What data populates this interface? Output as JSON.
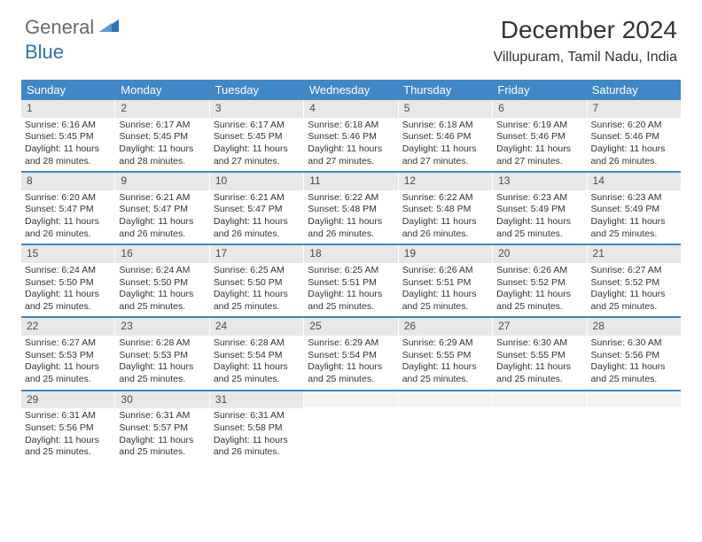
{
  "logo": {
    "text1": "General",
    "text2": "Blue"
  },
  "title": "December 2024",
  "location": "Villupuram, Tamil Nadu, India",
  "colors": {
    "header_bg": "#3f87c6",
    "daynum_bg": "#e8e8e8",
    "logo_gray": "#6a6a6a",
    "logo_blue": "#2d74b5"
  },
  "weekdays": [
    "Sunday",
    "Monday",
    "Tuesday",
    "Wednesday",
    "Thursday",
    "Friday",
    "Saturday"
  ],
  "weeks": [
    [
      {
        "n": "1",
        "sr": "Sunrise: 6:16 AM",
        "ss": "Sunset: 5:45 PM",
        "dl": "Daylight: 11 hours and 28 minutes."
      },
      {
        "n": "2",
        "sr": "Sunrise: 6:17 AM",
        "ss": "Sunset: 5:45 PM",
        "dl": "Daylight: 11 hours and 28 minutes."
      },
      {
        "n": "3",
        "sr": "Sunrise: 6:17 AM",
        "ss": "Sunset: 5:45 PM",
        "dl": "Daylight: 11 hours and 27 minutes."
      },
      {
        "n": "4",
        "sr": "Sunrise: 6:18 AM",
        "ss": "Sunset: 5:46 PM",
        "dl": "Daylight: 11 hours and 27 minutes."
      },
      {
        "n": "5",
        "sr": "Sunrise: 6:18 AM",
        "ss": "Sunset: 5:46 PM",
        "dl": "Daylight: 11 hours and 27 minutes."
      },
      {
        "n": "6",
        "sr": "Sunrise: 6:19 AM",
        "ss": "Sunset: 5:46 PM",
        "dl": "Daylight: 11 hours and 27 minutes."
      },
      {
        "n": "7",
        "sr": "Sunrise: 6:20 AM",
        "ss": "Sunset: 5:46 PM",
        "dl": "Daylight: 11 hours and 26 minutes."
      }
    ],
    [
      {
        "n": "8",
        "sr": "Sunrise: 6:20 AM",
        "ss": "Sunset: 5:47 PM",
        "dl": "Daylight: 11 hours and 26 minutes."
      },
      {
        "n": "9",
        "sr": "Sunrise: 6:21 AM",
        "ss": "Sunset: 5:47 PM",
        "dl": "Daylight: 11 hours and 26 minutes."
      },
      {
        "n": "10",
        "sr": "Sunrise: 6:21 AM",
        "ss": "Sunset: 5:47 PM",
        "dl": "Daylight: 11 hours and 26 minutes."
      },
      {
        "n": "11",
        "sr": "Sunrise: 6:22 AM",
        "ss": "Sunset: 5:48 PM",
        "dl": "Daylight: 11 hours and 26 minutes."
      },
      {
        "n": "12",
        "sr": "Sunrise: 6:22 AM",
        "ss": "Sunset: 5:48 PM",
        "dl": "Daylight: 11 hours and 26 minutes."
      },
      {
        "n": "13",
        "sr": "Sunrise: 6:23 AM",
        "ss": "Sunset: 5:49 PM",
        "dl": "Daylight: 11 hours and 25 minutes."
      },
      {
        "n": "14",
        "sr": "Sunrise: 6:23 AM",
        "ss": "Sunset: 5:49 PM",
        "dl": "Daylight: 11 hours and 25 minutes."
      }
    ],
    [
      {
        "n": "15",
        "sr": "Sunrise: 6:24 AM",
        "ss": "Sunset: 5:50 PM",
        "dl": "Daylight: 11 hours and 25 minutes."
      },
      {
        "n": "16",
        "sr": "Sunrise: 6:24 AM",
        "ss": "Sunset: 5:50 PM",
        "dl": "Daylight: 11 hours and 25 minutes."
      },
      {
        "n": "17",
        "sr": "Sunrise: 6:25 AM",
        "ss": "Sunset: 5:50 PM",
        "dl": "Daylight: 11 hours and 25 minutes."
      },
      {
        "n": "18",
        "sr": "Sunrise: 6:25 AM",
        "ss": "Sunset: 5:51 PM",
        "dl": "Daylight: 11 hours and 25 minutes."
      },
      {
        "n": "19",
        "sr": "Sunrise: 6:26 AM",
        "ss": "Sunset: 5:51 PM",
        "dl": "Daylight: 11 hours and 25 minutes."
      },
      {
        "n": "20",
        "sr": "Sunrise: 6:26 AM",
        "ss": "Sunset: 5:52 PM",
        "dl": "Daylight: 11 hours and 25 minutes."
      },
      {
        "n": "21",
        "sr": "Sunrise: 6:27 AM",
        "ss": "Sunset: 5:52 PM",
        "dl": "Daylight: 11 hours and 25 minutes."
      }
    ],
    [
      {
        "n": "22",
        "sr": "Sunrise: 6:27 AM",
        "ss": "Sunset: 5:53 PM",
        "dl": "Daylight: 11 hours and 25 minutes."
      },
      {
        "n": "23",
        "sr": "Sunrise: 6:28 AM",
        "ss": "Sunset: 5:53 PM",
        "dl": "Daylight: 11 hours and 25 minutes."
      },
      {
        "n": "24",
        "sr": "Sunrise: 6:28 AM",
        "ss": "Sunset: 5:54 PM",
        "dl": "Daylight: 11 hours and 25 minutes."
      },
      {
        "n": "25",
        "sr": "Sunrise: 6:29 AM",
        "ss": "Sunset: 5:54 PM",
        "dl": "Daylight: 11 hours and 25 minutes."
      },
      {
        "n": "26",
        "sr": "Sunrise: 6:29 AM",
        "ss": "Sunset: 5:55 PM",
        "dl": "Daylight: 11 hours and 25 minutes."
      },
      {
        "n": "27",
        "sr": "Sunrise: 6:30 AM",
        "ss": "Sunset: 5:55 PM",
        "dl": "Daylight: 11 hours and 25 minutes."
      },
      {
        "n": "28",
        "sr": "Sunrise: 6:30 AM",
        "ss": "Sunset: 5:56 PM",
        "dl": "Daylight: 11 hours and 25 minutes."
      }
    ],
    [
      {
        "n": "29",
        "sr": "Sunrise: 6:31 AM",
        "ss": "Sunset: 5:56 PM",
        "dl": "Daylight: 11 hours and 25 minutes."
      },
      {
        "n": "30",
        "sr": "Sunrise: 6:31 AM",
        "ss": "Sunset: 5:57 PM",
        "dl": "Daylight: 11 hours and 25 minutes."
      },
      {
        "n": "31",
        "sr": "Sunrise: 6:31 AM",
        "ss": "Sunset: 5:58 PM",
        "dl": "Daylight: 11 hours and 26 minutes."
      },
      {
        "empty": true
      },
      {
        "empty": true
      },
      {
        "empty": true
      },
      {
        "empty": true
      }
    ]
  ]
}
